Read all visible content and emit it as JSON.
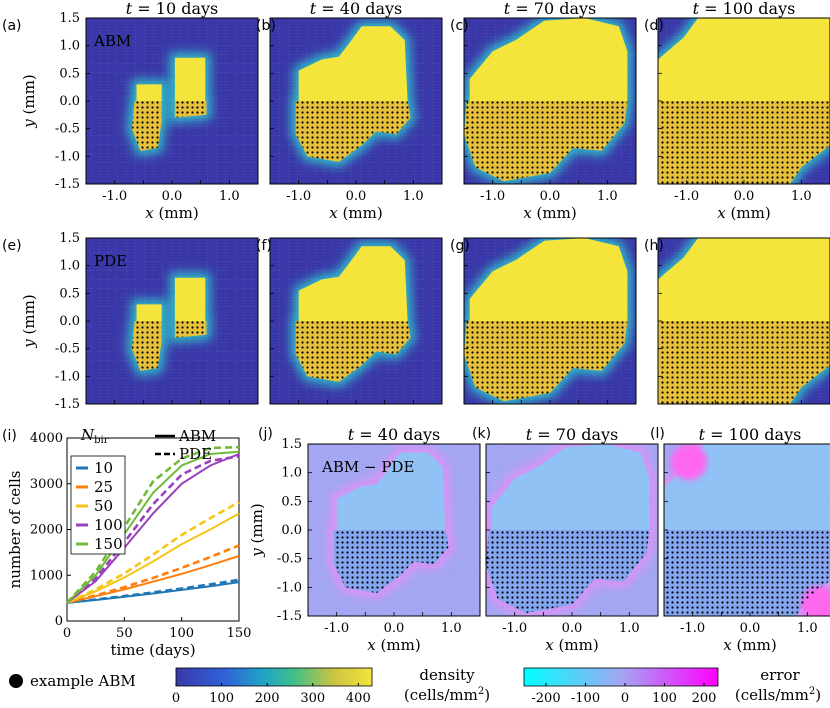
{
  "colors": {
    "density_low": "#3a38a8",
    "density_high": "#f5e43a",
    "error_low": "#00ffff",
    "error_high": "#ff00ff",
    "error_mid": "#a3a6f3",
    "frame": "#000000"
  },
  "panel_labels": [
    "(a)",
    "(b)",
    "(c)",
    "(d)",
    "(e)",
    "(f)",
    "(g)",
    "(h)",
    "(i)",
    "(j)",
    "(k)",
    "(l)"
  ],
  "density_panels": [
    {
      "label": "(a)",
      "title": "t = 10 days",
      "title_var": "t",
      "title_rest": " = 10 days",
      "annotation": "ABM",
      "ylabel_var": "y",
      "ylabel_unit": " (mm)",
      "xlabel_var": "x",
      "xlabel_unit": " (mm)",
      "xticks": [
        "-1.0",
        "0.0",
        "1.0"
      ],
      "yticks": [
        "1.5",
        "1.0",
        "0.5",
        "0.0",
        "-0.5",
        "-1.0",
        "-1.5"
      ],
      "day": 10
    },
    {
      "label": "(b)",
      "title": "t = 40 days",
      "title_var": "t",
      "title_rest": " = 40 days",
      "annotation": "",
      "xlabel_var": "x",
      "xlabel_unit": " (mm)",
      "xticks": [
        "-1.0",
        "0.0",
        "1.0"
      ],
      "day": 40
    },
    {
      "label": "(c)",
      "title": "t = 70 days",
      "title_var": "t",
      "title_rest": " = 70 days",
      "annotation": "",
      "xlabel_var": "x",
      "xlabel_unit": " (mm)",
      "xticks": [
        "-1.0",
        "0.0",
        "1.0"
      ],
      "day": 70
    },
    {
      "label": "(d)",
      "title": "t = 100 days",
      "title_var": "t",
      "title_rest": " = 100 days",
      "annotation": "",
      "xlabel_var": "x",
      "xlabel_unit": " (mm)",
      "xticks": [
        "-1.0",
        "0.0",
        "1.0"
      ],
      "day": 100
    },
    {
      "label": "(e)",
      "annotation": "PDE",
      "ylabel_var": "y",
      "ylabel_unit": " (mm)",
      "yticks": [
        "1.5",
        "1.0",
        "0.5",
        "0.0",
        "-0.5",
        "-1.0",
        "-1.5"
      ],
      "day": 10
    },
    {
      "label": "(f)",
      "annotation": "",
      "day": 40
    },
    {
      "label": "(g)",
      "annotation": "",
      "day": 70
    },
    {
      "label": "(h)",
      "annotation": "",
      "day": 100
    }
  ],
  "error_panels": [
    {
      "label": "(j)",
      "title_var": "t",
      "title_rest": " = 40 days",
      "annotation": "ABM − PDE",
      "ylabel_var": "y",
      "ylabel_unit": " (mm)",
      "xlabel_var": "x",
      "xlabel_unit": " (mm)",
      "xticks": [
        "-1.0",
        "0.0",
        "1.0"
      ],
      "yticks": [
        "1.5",
        "1.0",
        "0.5",
        "0.0",
        "-0.5",
        "-1.0",
        "-1.5"
      ],
      "day": 40
    },
    {
      "label": "(k)",
      "title_var": "t",
      "title_rest": " = 70 days",
      "annotation": "",
      "xlabel_var": "x",
      "xlabel_unit": " (mm)",
      "xticks": [
        "-1.0",
        "0.0",
        "1.0"
      ],
      "day": 70
    },
    {
      "label": "(l)",
      "title_var": "t",
      "title_rest": " = 100 days",
      "annotation": "",
      "xlabel_var": "x",
      "xlabel_unit": " (mm)",
      "xticks": [
        "-1.0",
        "0.0",
        "1.0"
      ],
      "day": 100
    }
  ],
  "legend_bottom": {
    "example_abm": "example ABM",
    "density_label_1": "density",
    "density_label_2": "(cells/mm",
    "density_label_sup": "2",
    "density_label_close": ")",
    "density_ticks": [
      "0",
      "100",
      "200",
      "300",
      "400"
    ],
    "error_label_1": "error",
    "error_label_2": "(cells/mm",
    "error_label_sup": "2",
    "error_label_close": ")",
    "error_ticks": [
      "-200",
      "-100",
      "0",
      "100",
      "200"
    ]
  },
  "chart_data": {
    "type": "line",
    "panel": "(i)",
    "xlabel": "time (days)",
    "ylabel": "number of cells",
    "xlim": [
      0,
      150
    ],
    "ylim": [
      0,
      4000
    ],
    "xticks": [
      "0",
      "50",
      "100",
      "150"
    ],
    "yticks": [
      "0",
      "1000",
      "2000",
      "3000",
      "4000"
    ],
    "legend_title": "N",
    "legend_title_sub": "bir",
    "legend_placement": "top-left",
    "style_legend": [
      {
        "name": "ABM",
        "dash": "solid"
      },
      {
        "name": "PDE",
        "dash": "dashed"
      }
    ],
    "x": [
      0,
      25,
      50,
      75,
      100,
      125,
      150
    ],
    "series": [
      {
        "name": "10",
        "color": "#1f77b4",
        "abm": [
          400,
          460,
          530,
          600,
          680,
          760,
          850
        ],
        "pde": [
          400,
          470,
          545,
          625,
          710,
          800,
          900
        ]
      },
      {
        "name": "25",
        "color": "#ff7f0e",
        "abm": [
          400,
          540,
          690,
          860,
          1030,
          1220,
          1420
        ],
        "pde": [
          400,
          560,
          740,
          940,
          1160,
          1400,
          1650
        ]
      },
      {
        "name": "50",
        "color": "#f5c518",
        "abm": [
          400,
          650,
          950,
          1300,
          1680,
          2000,
          2350
        ],
        "pde": [
          400,
          690,
          1040,
          1450,
          1880,
          2250,
          2600
        ]
      },
      {
        "name": "100",
        "color": "#9b3fbf",
        "abm": [
          400,
          870,
          1600,
          2350,
          3000,
          3400,
          3650
        ],
        "pde": [
          400,
          930,
          1720,
          2550,
          3200,
          3500,
          3600
        ]
      },
      {
        "name": "150",
        "color": "#6fba3a",
        "abm": [
          400,
          1000,
          1900,
          2800,
          3400,
          3650,
          3700
        ],
        "pde": [
          400,
          1080,
          2050,
          3050,
          3550,
          3780,
          3800
        ]
      }
    ]
  }
}
